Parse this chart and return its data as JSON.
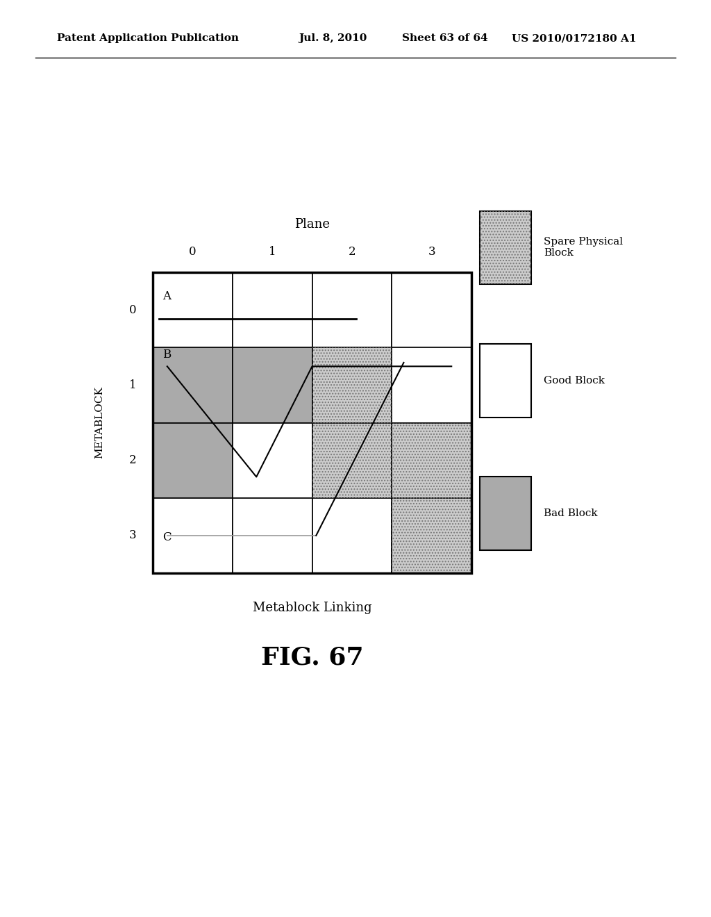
{
  "title_header": "Patent Application Publication",
  "date_header": "Jul. 8, 2010",
  "sheet_header": "Sheet 63 of 64",
  "patent_header": "US 2010/0172180 A1",
  "plane_label": "Plane",
  "metablock_label": "METABLOCK",
  "plane_ticks": [
    "0",
    "1",
    "2",
    "3"
  ],
  "metablock_ticks": [
    "0",
    "1",
    "2",
    "3"
  ],
  "caption": "Metablock Linking",
  "figure_label": "FIG. 67",
  "cell_colors": [
    [
      "white",
      "white",
      "white",
      "white"
    ],
    [
      "gray_light",
      "gray_light",
      "dotted",
      "white"
    ],
    [
      "gray_light",
      "white",
      "dotted",
      "dotted"
    ],
    [
      "white",
      "white",
      "white",
      "dotted"
    ]
  ],
  "background_color": "#ffffff"
}
